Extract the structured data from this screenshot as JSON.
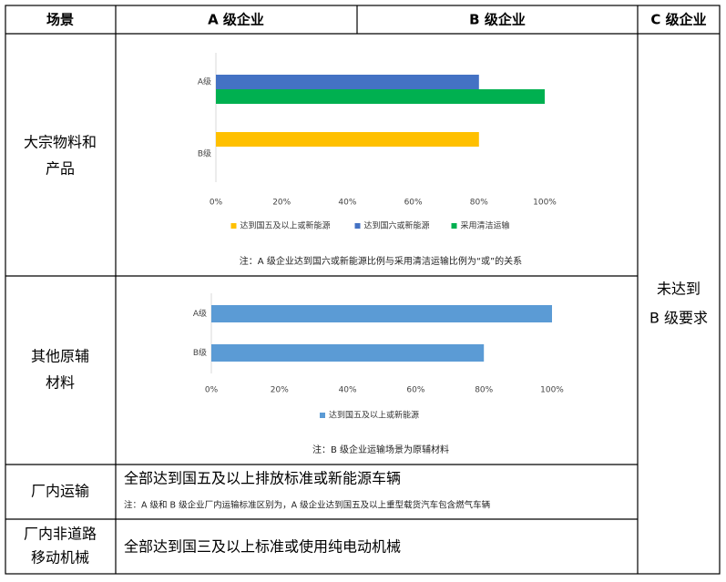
{
  "table": {
    "header": [
      "场景",
      "A 级企业",
      "B 级企业",
      "C 级企业"
    ],
    "c_column": [
      "未达到",
      "B 级要求"
    ],
    "rows": [
      {
        "scene": [
          "大宗物料和",
          "产品"
        ],
        "chart": {
          "type": "bar",
          "orientation": "horizontal",
          "categories": [
            "A级",
            "B级"
          ],
          "series": [
            {
              "name": "达到国五及以上或新能源",
              "color": "#ffc000",
              "values": [
                null,
                80
              ]
            },
            {
              "name": "达到国六或新能源",
              "color": "#4472c4",
              "values": [
                80,
                null
              ]
            },
            {
              "name": "采用清洁运输",
              "color": "#00b050",
              "values": [
                100,
                null
              ]
            }
          ],
          "xlim": [
            0,
            100
          ],
          "xticks": [
            {
              "value": 0,
              "label": "0%"
            },
            {
              "value": 20,
              "label": "20%"
            },
            {
              "value": 40,
              "label": "40%"
            },
            {
              "value": 60,
              "label": "60%"
            },
            {
              "value": 80,
              "label": "80%"
            },
            {
              "value": 100,
              "label": "100%"
            }
          ]
        },
        "note": "注：A 级企业达到国六或新能源比例与采用清洁运输比例为“或”的关系"
      },
      {
        "scene": [
          "其他原辅",
          "材料"
        ],
        "chart": {
          "type": "bar",
          "orientation": "horizontal",
          "categories": [
            "A级",
            "B级"
          ],
          "series": [
            {
              "name": "达到国五及以上或新能源",
              "color": "#5b9bd5",
              "values": [
                100,
                80
              ]
            }
          ],
          "xlim": [
            0,
            100
          ],
          "xticks": [
            {
              "value": 0,
              "label": "0%"
            },
            {
              "value": 20,
              "label": "20%"
            },
            {
              "value": 40,
              "label": "40%"
            },
            {
              "value": 60,
              "label": "60%"
            },
            {
              "value": 80,
              "label": "80%"
            },
            {
              "value": 100,
              "label": "100%"
            }
          ]
        },
        "note": "注：B 级企业运输场景为原辅材料"
      },
      {
        "scene": [
          "厂内运输"
        ],
        "text": "全部达到国五及以上排放标准或新能源车辆",
        "note": "注：A 级和 B 级企业厂内运输标准区别为，A 级企业达到国五及以上重型载货汽车包含燃气车辆"
      },
      {
        "scene": [
          "厂内非道路",
          "移动机械"
        ],
        "text": "全部达到国三及以上标准或使用纯电动机械"
      }
    ]
  }
}
